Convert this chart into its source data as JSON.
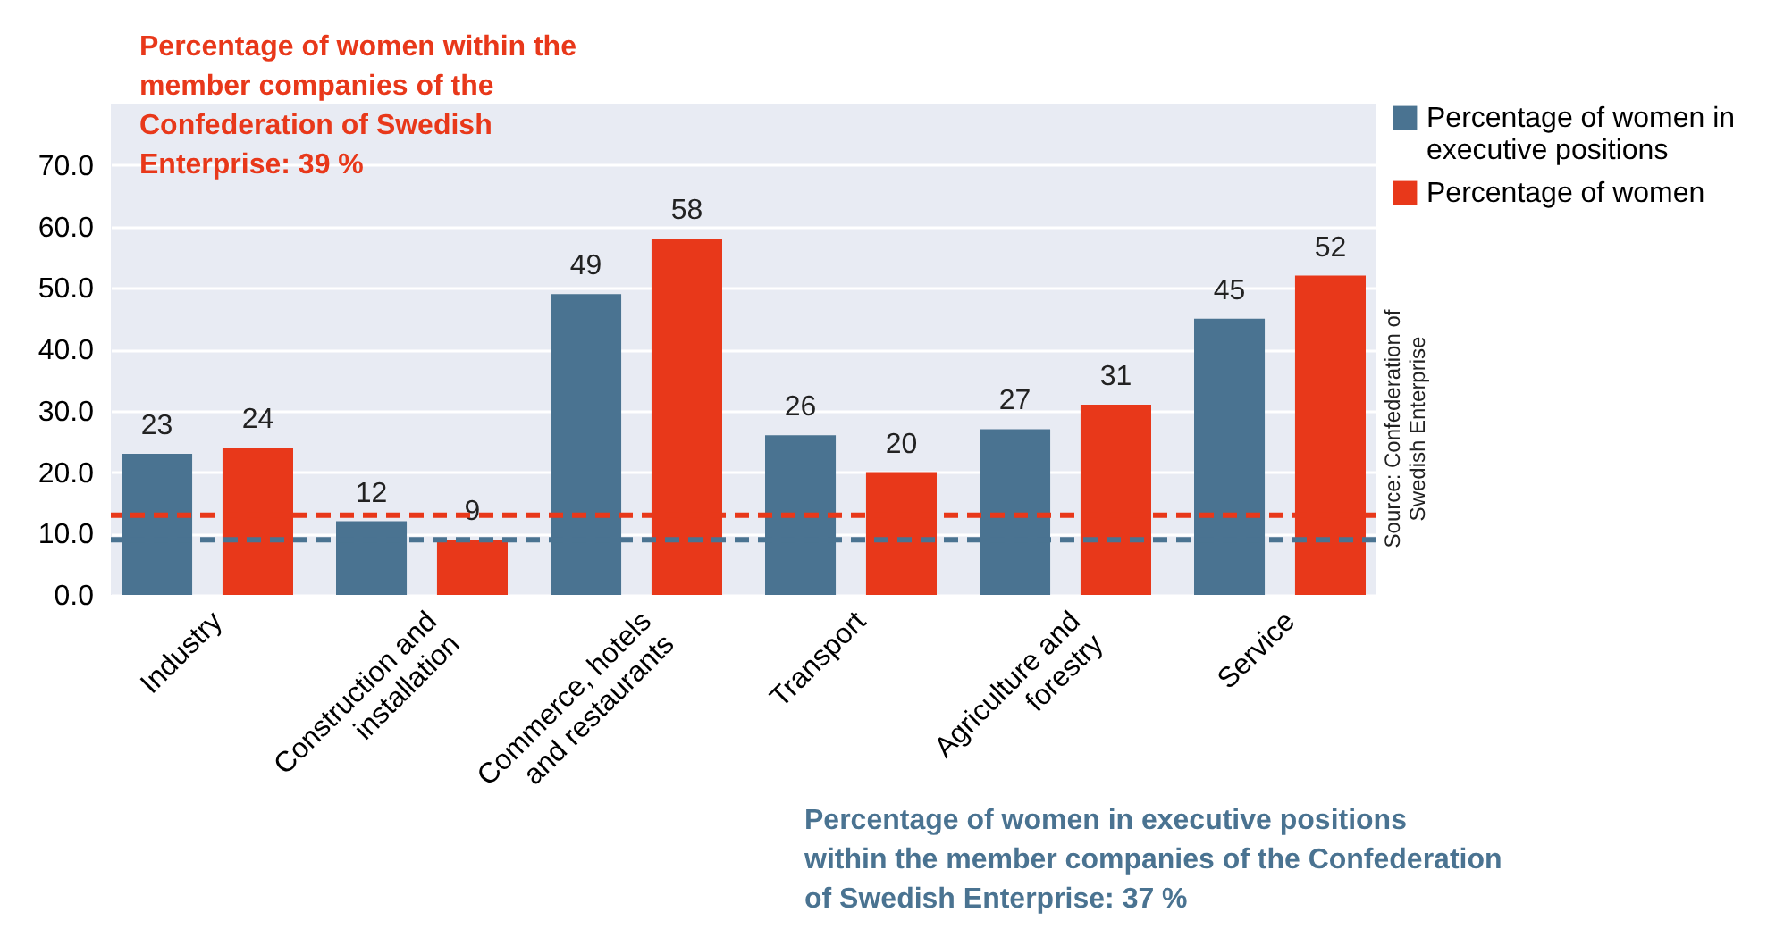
{
  "chart_data": {
    "type": "bar",
    "categories": [
      "Industry",
      "Construction and installation",
      "Commerce, hotels and restaurants",
      "Transport",
      "Agriculture and forestry",
      "Service"
    ],
    "series": [
      {
        "name": "Percentage of women in executive positions",
        "color": "#4a7391",
        "values": [
          23,
          12,
          49,
          26,
          27,
          45
        ]
      },
      {
        "name": "Percentage of women",
        "color": "#e8381a",
        "values": [
          24,
          9,
          58,
          20,
          31,
          52
        ]
      }
    ],
    "ylim": [
      0,
      80
    ],
    "yticks": [
      {
        "value": 0,
        "label": "0.0"
      },
      {
        "value": 10,
        "label": "10.0"
      },
      {
        "value": 20,
        "label": "20.0"
      },
      {
        "value": 30,
        "label": "30.0"
      },
      {
        "value": 40,
        "label": "40.0"
      },
      {
        "value": 50,
        "label": "50.0"
      },
      {
        "value": 60,
        "label": "60.0"
      },
      {
        "value": 70,
        "label": "70.0"
      }
    ],
    "grid": "y",
    "legend": "top right",
    "data_labels": true,
    "ref_lines": [
      {
        "axis": "y",
        "value": 13,
        "color": "#e8381a",
        "line_style": "dashed"
      },
      {
        "axis": "y",
        "value": 9,
        "color": "#4a7391",
        "line_style": "dashed"
      }
    ],
    "annotations": [
      "Percentage of women within the member companies of the Confederation of Swedish Enterprise: 39 %",
      "Percentage of women in executive positions within the member companies of the Confederation of Swedish Enterprise: 37 %",
      "Source: Confederation of Swedish Enterprise"
    ]
  }
}
